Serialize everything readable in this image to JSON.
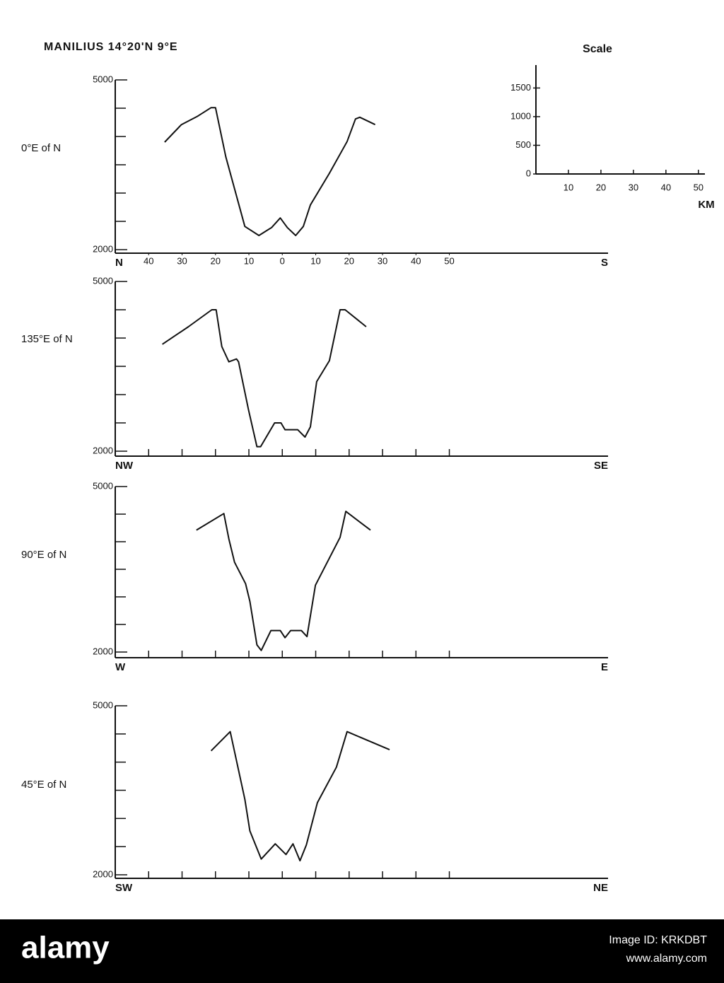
{
  "header": {
    "title": "MANILIUS  14°20'N  9°E"
  },
  "chart_data": [
    {
      "type": "line",
      "panel_label": "0°E of N",
      "color": "#111111",
      "x_start_label": "N",
      "x_end_label": "S",
      "xlim": [
        -50,
        97.5
      ],
      "ylim": [
        2000,
        5000
      ],
      "xticks": [
        {
          "value": -40,
          "label": "40"
        },
        {
          "value": -30,
          "label": "30"
        },
        {
          "value": -20,
          "label": "20"
        },
        {
          "value": -10,
          "label": "10"
        },
        0,
        10,
        20,
        30,
        40,
        50
      ],
      "yticks": [
        2000,
        5000
      ],
      "minor_yticks": [
        2500,
        3000,
        3500,
        4000,
        4500
      ],
      "x": [
        -35.2,
        -30.2,
        -25.3,
        -21.3,
        -20,
        -16.9,
        -11.2,
        -7,
        -3.2,
        -0.6,
        1.5,
        4,
        6.3,
        8.4,
        14.1,
        19.4,
        21.9,
        23.2,
        27.8
      ],
      "values": [
        3900,
        4210,
        4360,
        4510,
        4510,
        3640,
        2410,
        2250,
        2390,
        2560,
        2390,
        2250,
        2410,
        2790,
        3350,
        3910,
        4310,
        4340,
        4210
      ]
    },
    {
      "type": "line",
      "panel_label": "135°E of N",
      "color": "#111111",
      "x_start_label": "NW",
      "x_end_label": "SE",
      "xlim": [
        -50,
        97.5
      ],
      "ylim": [
        2000,
        5000
      ],
      "minor_xticks": [
        -40,
        -30,
        -20,
        -10,
        0,
        10,
        20,
        30,
        40,
        50
      ],
      "yticks": [
        2000,
        5000
      ],
      "minor_yticks": [
        2500,
        3000,
        3500,
        4000,
        4500
      ],
      "x": [
        -35.9,
        -28.1,
        -21.1,
        -19.8,
        -18.1,
        -16,
        -13.7,
        -13.1,
        -10.1,
        -7.6,
        -6.5,
        -2.3,
        -0.4,
        0.8,
        4.6,
        6.8,
        8.4,
        10.3,
        14.1,
        17.3,
        18.8,
        25.1
      ],
      "values": [
        3890,
        4200,
        4500,
        4500,
        3850,
        3580,
        3630,
        3580,
        2730,
        2080,
        2080,
        2500,
        2500,
        2380,
        2380,
        2250,
        2430,
        3230,
        3600,
        4500,
        4500,
        4200
      ]
    },
    {
      "type": "line",
      "panel_label": "90°E of N",
      "color": "#111111",
      "x_start_label": "W",
      "x_end_label": "E",
      "xlim": [
        -50,
        97.5
      ],
      "ylim": [
        2000,
        5000
      ],
      "minor_xticks": [
        -40,
        -30,
        -20,
        -10,
        0,
        10,
        20,
        30,
        40,
        50
      ],
      "yticks": [
        2000,
        5000
      ],
      "minor_yticks": [
        2500,
        3000,
        3500,
        4000,
        4500
      ],
      "x": [
        -25.7,
        -17.5,
        -16,
        -14.3,
        -11,
        -9.7,
        -7.6,
        -6.3,
        -3.4,
        -0.6,
        0.8,
        2.5,
        5.7,
        7.4,
        9.9,
        17.3,
        19,
        26.4
      ],
      "values": [
        4210,
        4510,
        4050,
        3630,
        3240,
        2920,
        2130,
        2030,
        2390,
        2390,
        2260,
        2390,
        2390,
        2280,
        3210,
        4080,
        4550,
        4210
      ]
    },
    {
      "type": "line",
      "panel_label": "45°E of N",
      "color": "#111111",
      "x_start_label": "SW",
      "x_end_label": "NE",
      "xlim": [
        -50,
        97.5
      ],
      "ylim": [
        2000,
        5000
      ],
      "minor_xticks": [
        -40,
        -30,
        -20,
        -10,
        0,
        10,
        20,
        30,
        40,
        50
      ],
      "yticks": [
        2000,
        5000
      ],
      "minor_yticks": [
        2500,
        3000,
        3500,
        4000,
        4500
      ],
      "x": [
        -21.3,
        -15.6,
        -11.2,
        -9.7,
        -6.3,
        -2.1,
        1.1,
        3.2,
        5.3,
        7.2,
        10.5,
        16.2,
        19.4,
        32.1
      ],
      "values": [
        4200,
        4540,
        3340,
        2780,
        2280,
        2550,
        2360,
        2550,
        2250,
        2530,
        3280,
        3910,
        4540,
        4220
      ]
    },
    {
      "type": "scale",
      "title": "Scale",
      "xlabel": "KM",
      "xlim": [
        0,
        52
      ],
      "ylim": [
        0,
        1900
      ],
      "xticks": [
        10,
        20,
        30,
        40,
        50
      ],
      "yticks": [
        0,
        500,
        1000,
        1500
      ]
    }
  ],
  "watermark": {
    "brand": "alamy",
    "image_id": "Image ID: KRKDBT",
    "url": "www.alamy.com"
  }
}
